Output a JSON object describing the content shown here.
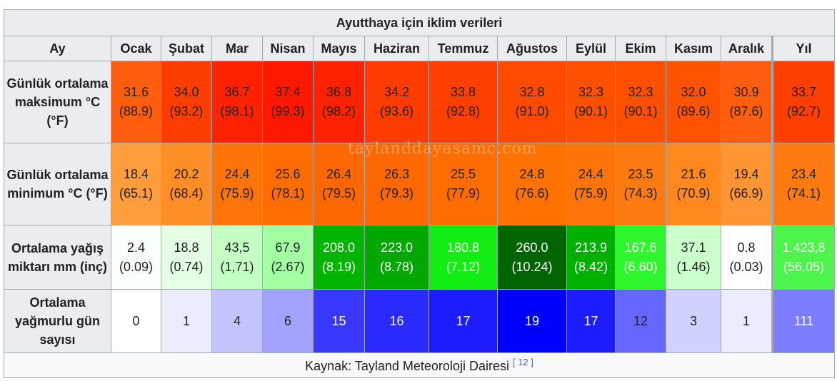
{
  "title": "Ayutthaya için iklim verileri",
  "header": {
    "first": "Ay",
    "months": [
      "Ocak",
      "Şubat",
      "Mar",
      "Nisan",
      "Mayıs",
      "Haziran",
      "Temmuz",
      "Ağustos",
      "Eylül",
      "Ekim",
      "Kasım",
      "Aralık"
    ],
    "year": "Yıl"
  },
  "rows": [
    {
      "key": "max",
      "label": "Günlük ortalama maksimum °C (°F)",
      "values": [
        "31.6",
        "34.0",
        "36.7",
        "37.4",
        "36.8",
        "34.2",
        "33.8",
        "32.8",
        "32.3",
        "32.3",
        "32.0",
        "30.9"
      ],
      "sub": [
        "(88.9)",
        "(93.2)",
        "(98.1)",
        "(99.3)",
        "(98.2)",
        "(93.6)",
        "(92.8)",
        "(91.0)",
        "(90.1)",
        "(90.1)",
        "(89.6)",
        "(87.6)"
      ],
      "year": "33.7",
      "year_sub": "(92.7)",
      "colors": [
        "#ff5e0f",
        "#ff3d00",
        "#ff2200",
        "#ff1800",
        "#ff2200",
        "#ff3b00",
        "#ff3f00",
        "#ff4a00",
        "#ff5000",
        "#ff5000",
        "#ff5300",
        "#ff5e0f"
      ],
      "year_color": "#ff3f00"
    },
    {
      "key": "min",
      "label": "Günlük ortalama minimum °C (°F)",
      "values": [
        "18.4",
        "20.2",
        "24.4",
        "25.6",
        "26.4",
        "26.3",
        "25.5",
        "24.8",
        "24.4",
        "23.5",
        "21.6",
        "19.4"
      ],
      "sub": [
        "(65.1)",
        "(68.4)",
        "(75.9)",
        "(78.1)",
        "(79.5)",
        "(79.3)",
        "(77.9)",
        "(76.6)",
        "(75.9)",
        "(74.3)",
        "(70.9)",
        "(66.9)"
      ],
      "year": "23.4",
      "year_sub": "(74.1)",
      "colors": [
        "#ff9c3c",
        "#ff8e26",
        "#ff7408",
        "#ff6d00",
        "#ff6700",
        "#ff6700",
        "#ff6d00",
        "#ff7200",
        "#ff7408",
        "#ff7a10",
        "#ff881f",
        "#ff9533"
      ],
      "year_color": "#ff7a10"
    },
    {
      "key": "rain",
      "label": "Ortalama yağış miktarı mm (inç)",
      "values": [
        "2.4",
        "18.8",
        "43,5",
        "67.9",
        "208.0",
        "223.0",
        "180.8",
        "260.0",
        "213.9",
        "167.6",
        "37.1",
        "0.8"
      ],
      "sub": [
        "(0.09)",
        "(0.74)",
        "(1,71)",
        "(2.67)",
        "(8.19)",
        "(8.78)",
        "(7.12)",
        "(10.24)",
        "(8.42)",
        "(6.60)",
        "(1.46)",
        "(0.03)"
      ],
      "year": "1.423,8",
      "year_sub": "(56,05)",
      "colors": [
        "#fbfffb",
        "#e4ffe4",
        "#c4ffc4",
        "#a2ffa2",
        "#00b400",
        "#00a800",
        "#14ed14",
        "#006400",
        "#00b000",
        "#2ef72e",
        "#cbffcb",
        "#ffffff"
      ],
      "dark": [
        false,
        false,
        false,
        false,
        true,
        true,
        true,
        true,
        true,
        true,
        false,
        false
      ],
      "year_color": "#4cf44c",
      "year_dark": true
    },
    {
      "key": "days",
      "label": "Ortalama yağmurlu gün sayısı",
      "values": [
        "0",
        "1",
        "4",
        "6",
        "15",
        "16",
        "17",
        "19",
        "17",
        "12",
        "3",
        "1"
      ],
      "year": "111",
      "colors": [
        "#ffffff",
        "#ececff",
        "#c4c4ff",
        "#a3a3ff",
        "#3838ff",
        "#2a2aff",
        "#1c1cff",
        "#0000ff",
        "#1c1cff",
        "#6565ff",
        "#d1d1ff",
        "#ececff"
      ],
      "dark": [
        false,
        false,
        false,
        false,
        true,
        true,
        true,
        true,
        true,
        false,
        false,
        false
      ],
      "year_color": "#7c7cff",
      "year_dark": true
    }
  ],
  "source": {
    "text": "Kaynak: Tayland Meteoroloji Dairesi",
    "ref": "[ 12 ]"
  },
  "watermark": "taylanddayasamc.com"
}
